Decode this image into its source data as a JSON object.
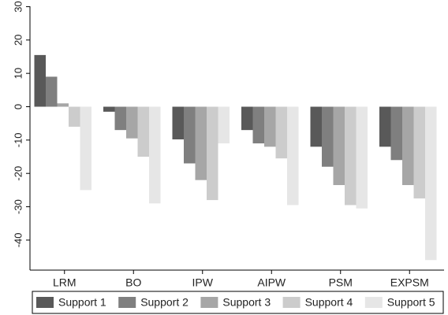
{
  "chart_data": {
    "type": "bar",
    "categories": [
      "LRM",
      "BO",
      "IPW",
      "AIPW",
      "PSM",
      "EXPSM"
    ],
    "series": [
      {
        "name": "Support 1",
        "color": "#595959",
        "values": [
          15.5,
          -1.5,
          -9.8,
          -7.0,
          -12.0,
          -12.0
        ]
      },
      {
        "name": "Support 2",
        "color": "#7f7f7f",
        "values": [
          9.0,
          -7.0,
          -17.0,
          -11.0,
          -18.0,
          -16.0
        ]
      },
      {
        "name": "Support 3",
        "color": "#a6a6a6",
        "values": [
          1.0,
          -9.5,
          -22.0,
          -12.0,
          -23.5,
          -23.5
        ]
      },
      {
        "name": "Support 4",
        "color": "#cccccc",
        "values": [
          -6.0,
          -15.0,
          -28.0,
          -15.5,
          -29.5,
          -27.5
        ]
      },
      {
        "name": "Support 5",
        "color": "#e6e6e6",
        "values": [
          -25.0,
          -29.0,
          -11.0,
          -29.5,
          -30.5,
          -46.0
        ]
      }
    ],
    "yticks": [
      30,
      20,
      10,
      0,
      -10,
      -20,
      -30,
      -40
    ],
    "ylim": [
      -49,
      32
    ],
    "grid": false,
    "legend_position": "bottom",
    "title": "",
    "xlabel": "",
    "ylabel": ""
  }
}
